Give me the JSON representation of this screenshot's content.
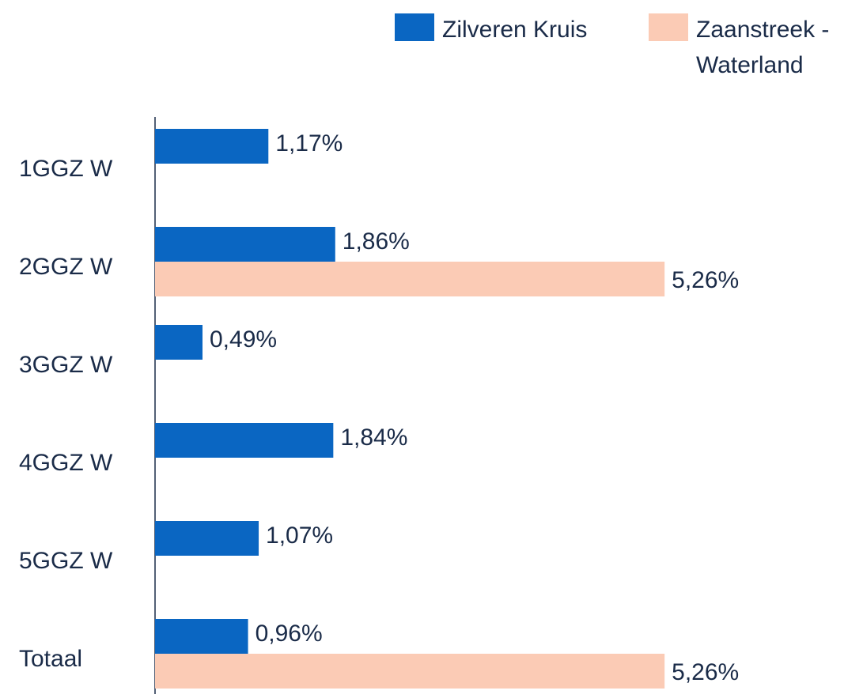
{
  "chart_data": {
    "type": "hbar",
    "categories": [
      "1GGZ W",
      "2GGZ W",
      "3GGZ W",
      "4GGZ W",
      "5GGZ W",
      "Totaal"
    ],
    "series": [
      {
        "name": "Zilveren Kruis",
        "color": "#0a66c2",
        "values": [
          1.17,
          1.86,
          0.49,
          1.84,
          1.07,
          0.96
        ],
        "value_labels": [
          "1,17%",
          "1,86%",
          "0,49%",
          "1,84%",
          "1,07%",
          "0,96%"
        ]
      },
      {
        "name": "Zaanstreek -Waterland",
        "color": "#fbcbb5",
        "values": [
          null,
          5.26,
          null,
          null,
          null,
          5.26
        ],
        "value_labels": [
          null,
          "5,26%",
          null,
          null,
          null,
          "5,26%"
        ]
      }
    ],
    "xlim": [
      0,
      7.3
    ],
    "legend": "top-right"
  }
}
